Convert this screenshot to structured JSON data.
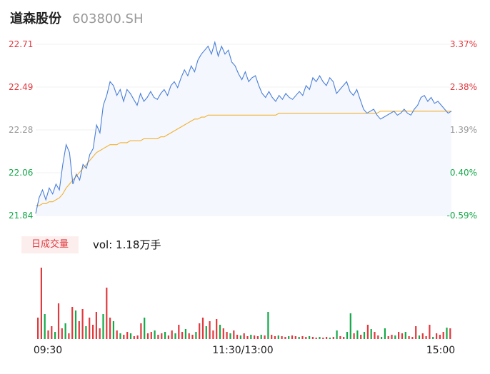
{
  "header": {
    "name": "道森股份",
    "code": "603800.SH"
  },
  "volume_tag": "日成交量",
  "volume_text": "vol: 1.18万手",
  "colors": {
    "up": "#e0393e",
    "down": "#15a84a",
    "neutral": "#999999",
    "price_line": "#4a7fd8",
    "avg_line": "#f2b12f",
    "area_fill": "#f4f7fd"
  },
  "chart_data": {
    "type": "line",
    "series": [
      {
        "role": "price",
        "values": [
          21.85,
          21.93,
          21.97,
          21.92,
          21.98,
          21.95,
          22.0,
          21.97,
          22.1,
          22.2,
          22.16,
          22.0,
          22.05,
          22.02,
          22.1,
          22.08,
          22.15,
          22.18,
          22.3,
          22.26,
          22.4,
          22.45,
          22.52,
          22.5,
          22.45,
          22.48,
          22.42,
          22.48,
          22.46,
          22.43,
          22.4,
          22.46,
          22.42,
          22.44,
          22.47,
          22.44,
          22.43,
          22.46,
          22.48,
          22.45,
          22.5,
          22.52,
          22.49,
          22.54,
          22.58,
          22.55,
          22.6,
          22.57,
          22.63,
          22.66,
          22.68,
          22.7,
          22.66,
          22.72,
          22.65,
          22.7,
          22.66,
          22.68,
          22.62,
          22.6,
          22.56,
          22.53,
          22.57,
          22.52,
          22.54,
          22.55,
          22.5,
          22.46,
          22.44,
          22.47,
          22.44,
          22.42,
          22.45,
          22.43,
          22.46,
          22.44,
          22.43,
          22.45,
          22.47,
          22.45,
          22.5,
          22.48,
          22.54,
          22.52,
          22.55,
          22.52,
          22.5,
          22.54,
          22.52,
          22.46,
          22.48,
          22.5,
          22.52,
          22.47,
          22.45,
          22.48,
          22.43,
          22.38,
          22.36,
          22.37,
          22.38,
          22.35,
          22.33,
          22.34,
          22.35,
          22.36,
          22.37,
          22.35,
          22.36,
          22.38,
          22.36,
          22.35,
          22.38,
          22.4,
          22.44,
          22.45,
          22.42,
          22.44,
          22.41,
          22.42,
          22.4,
          22.38,
          22.36,
          22.37
        ]
      },
      {
        "role": "average",
        "values": [
          21.89,
          21.89,
          21.9,
          21.9,
          21.91,
          21.91,
          21.92,
          21.93,
          21.95,
          21.98,
          22.0,
          22.02,
          22.04,
          22.06,
          22.08,
          22.1,
          22.12,
          22.14,
          22.16,
          22.17,
          22.18,
          22.19,
          22.2,
          22.2,
          22.2,
          22.21,
          22.21,
          22.21,
          22.22,
          22.22,
          22.22,
          22.22,
          22.23,
          22.23,
          22.23,
          22.23,
          22.23,
          22.24,
          22.24,
          22.25,
          22.26,
          22.27,
          22.28,
          22.29,
          22.3,
          22.31,
          22.32,
          22.33,
          22.33,
          22.34,
          22.34,
          22.35,
          22.35,
          22.35,
          22.35,
          22.35,
          22.35,
          22.35,
          22.35,
          22.35,
          22.35,
          22.35,
          22.35,
          22.35,
          22.35,
          22.35,
          22.35,
          22.35,
          22.35,
          22.35,
          22.35,
          22.35,
          22.36,
          22.36,
          22.36,
          22.36,
          22.36,
          22.36,
          22.36,
          22.36,
          22.36,
          22.36,
          22.36,
          22.36,
          22.36,
          22.36,
          22.36,
          22.36,
          22.36,
          22.36,
          22.36,
          22.36,
          22.36,
          22.36,
          22.36,
          22.36,
          22.36,
          22.36,
          22.36,
          22.36,
          22.36,
          22.36,
          22.37,
          22.37,
          22.37,
          22.37,
          22.37,
          22.37,
          22.37,
          22.37,
          22.37,
          22.37,
          22.37,
          22.37,
          22.37,
          22.37,
          22.37,
          22.37,
          22.37,
          22.37,
          22.37,
          22.37,
          22.37,
          22.37
        ]
      }
    ],
    "y_ticks": [
      "22.71",
      "22.49",
      "22.28",
      "22.06",
      "21.84"
    ],
    "pct_ticks": [
      "3.37%",
      "2.38%",
      "1.39%",
      "0.40%",
      "-0.59%"
    ],
    "y_range": [
      21.84,
      22.71
    ],
    "x_ticks": [
      "09:30",
      "11:30/13:00",
      "15:00"
    ],
    "volume": [
      {
        "v": 30,
        "d": "up"
      },
      {
        "v": 100,
        "d": "up"
      },
      {
        "v": 35,
        "d": "down"
      },
      {
        "v": 12,
        "d": "up"
      },
      {
        "v": 18,
        "d": "up"
      },
      {
        "v": 10,
        "d": "down"
      },
      {
        "v": 50,
        "d": "up"
      },
      {
        "v": 15,
        "d": "up"
      },
      {
        "v": 22,
        "d": "down"
      },
      {
        "v": 8,
        "d": "up"
      },
      {
        "v": 45,
        "d": "up"
      },
      {
        "v": 40,
        "d": "down"
      },
      {
        "v": 25,
        "d": "up"
      },
      {
        "v": 42,
        "d": "up"
      },
      {
        "v": 18,
        "d": "down"
      },
      {
        "v": 30,
        "d": "up"
      },
      {
        "v": 20,
        "d": "up"
      },
      {
        "v": 38,
        "d": "up"
      },
      {
        "v": 15,
        "d": "up"
      },
      {
        "v": 35,
        "d": "down"
      },
      {
        "v": 72,
        "d": "up"
      },
      {
        "v": 30,
        "d": "up"
      },
      {
        "v": 25,
        "d": "down"
      },
      {
        "v": 12,
        "d": "up"
      },
      {
        "v": 8,
        "d": "down"
      },
      {
        "v": 6,
        "d": "up"
      },
      {
        "v": 10,
        "d": "up"
      },
      {
        "v": 8,
        "d": "down"
      },
      {
        "v": 4,
        "d": "up"
      },
      {
        "v": 5,
        "d": "up"
      },
      {
        "v": 22,
        "d": "up"
      },
      {
        "v": 30,
        "d": "down"
      },
      {
        "v": 8,
        "d": "up"
      },
      {
        "v": 10,
        "d": "up"
      },
      {
        "v": 12,
        "d": "down"
      },
      {
        "v": 6,
        "d": "up"
      },
      {
        "v": 8,
        "d": "up"
      },
      {
        "v": 10,
        "d": "down"
      },
      {
        "v": 5,
        "d": "up"
      },
      {
        "v": 12,
        "d": "up"
      },
      {
        "v": 8,
        "d": "down"
      },
      {
        "v": 20,
        "d": "up"
      },
      {
        "v": 10,
        "d": "up"
      },
      {
        "v": 14,
        "d": "down"
      },
      {
        "v": 8,
        "d": "up"
      },
      {
        "v": 6,
        "d": "up"
      },
      {
        "v": 10,
        "d": "down"
      },
      {
        "v": 22,
        "d": "up"
      },
      {
        "v": 30,
        "d": "up"
      },
      {
        "v": 18,
        "d": "down"
      },
      {
        "v": 25,
        "d": "up"
      },
      {
        "v": 12,
        "d": "up"
      },
      {
        "v": 28,
        "d": "up"
      },
      {
        "v": 20,
        "d": "down"
      },
      {
        "v": 15,
        "d": "up"
      },
      {
        "v": 10,
        "d": "up"
      },
      {
        "v": 8,
        "d": "down"
      },
      {
        "v": 12,
        "d": "up"
      },
      {
        "v": 6,
        "d": "up"
      },
      {
        "v": 5,
        "d": "down"
      },
      {
        "v": 8,
        "d": "up"
      },
      {
        "v": 4,
        "d": "up"
      },
      {
        "v": 6,
        "d": "down"
      },
      {
        "v": 5,
        "d": "up"
      },
      {
        "v": 4,
        "d": "up"
      },
      {
        "v": 6,
        "d": "down"
      },
      {
        "v": 5,
        "d": "up"
      },
      {
        "v": 38,
        "d": "down"
      },
      {
        "v": 6,
        "d": "up"
      },
      {
        "v": 4,
        "d": "up"
      },
      {
        "v": 5,
        "d": "down"
      },
      {
        "v": 4,
        "d": "up"
      },
      {
        "v": 3,
        "d": "up"
      },
      {
        "v": 4,
        "d": "down"
      },
      {
        "v": 5,
        "d": "up"
      },
      {
        "v": 4,
        "d": "up"
      },
      {
        "v": 3,
        "d": "down"
      },
      {
        "v": 4,
        "d": "up"
      },
      {
        "v": 3,
        "d": "up"
      },
      {
        "v": 4,
        "d": "down"
      },
      {
        "v": 3,
        "d": "up"
      },
      {
        "v": 2,
        "d": "up"
      },
      {
        "v": 3,
        "d": "down"
      },
      {
        "v": 2,
        "d": "up"
      },
      {
        "v": 3,
        "d": "up"
      },
      {
        "v": 2,
        "d": "down"
      },
      {
        "v": 3,
        "d": "up"
      },
      {
        "v": 12,
        "d": "down"
      },
      {
        "v": 4,
        "d": "up"
      },
      {
        "v": 3,
        "d": "up"
      },
      {
        "v": 10,
        "d": "down"
      },
      {
        "v": 36,
        "d": "down"
      },
      {
        "v": 8,
        "d": "up"
      },
      {
        "v": 12,
        "d": "down"
      },
      {
        "v": 6,
        "d": "up"
      },
      {
        "v": 10,
        "d": "down"
      },
      {
        "v": 20,
        "d": "up"
      },
      {
        "v": 14,
        "d": "down"
      },
      {
        "v": 10,
        "d": "up"
      },
      {
        "v": 5,
        "d": "up"
      },
      {
        "v": 3,
        "d": "down"
      },
      {
        "v": 15,
        "d": "down"
      },
      {
        "v": 4,
        "d": "up"
      },
      {
        "v": 6,
        "d": "up"
      },
      {
        "v": 5,
        "d": "down"
      },
      {
        "v": 10,
        "d": "up"
      },
      {
        "v": 8,
        "d": "up"
      },
      {
        "v": 10,
        "d": "down"
      },
      {
        "v": 4,
        "d": "up"
      },
      {
        "v": 3,
        "d": "up"
      },
      {
        "v": 18,
        "d": "up"
      },
      {
        "v": 5,
        "d": "down"
      },
      {
        "v": 8,
        "d": "up"
      },
      {
        "v": 4,
        "d": "up"
      },
      {
        "v": 20,
        "d": "up"
      },
      {
        "v": 3,
        "d": "down"
      },
      {
        "v": 8,
        "d": "up"
      },
      {
        "v": 6,
        "d": "up"
      },
      {
        "v": 10,
        "d": "up"
      },
      {
        "v": 16,
        "d": "down"
      },
      {
        "v": 15,
        "d": "up"
      }
    ]
  }
}
